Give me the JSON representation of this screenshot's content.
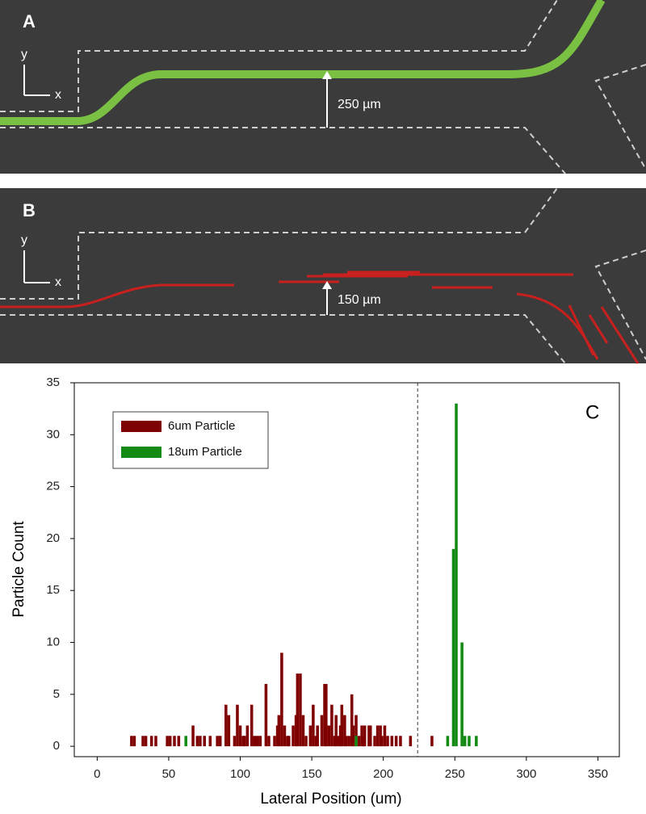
{
  "panels": {
    "a": {
      "label": "A",
      "axis_y": "y",
      "axis_x": "x",
      "scale": "250 µm"
    },
    "b": {
      "label": "B",
      "axis_y": "y",
      "axis_x": "x",
      "scale": "150 µm"
    }
  },
  "chart_data": {
    "type": "bar",
    "panel_label": "C",
    "x_label": "Lateral Position (um)",
    "y_label": "Particle Count",
    "xlim": [
      -16,
      365
    ],
    "ylim": [
      -1,
      35
    ],
    "xticks": [
      0,
      50,
      100,
      150,
      200,
      250,
      300,
      350
    ],
    "yticks": [
      0,
      5,
      10,
      15,
      20,
      25,
      30,
      35
    ],
    "vline": 224,
    "legend": "upper-left",
    "series": [
      {
        "name": "6um Particle",
        "color": "#7f0000",
        "x": [
          24,
          26,
          32,
          34,
          38,
          41,
          49,
          51,
          54,
          57,
          67,
          70,
          72,
          75,
          79,
          84,
          86,
          90,
          92,
          96,
          98,
          100,
          102,
          103,
          105,
          108,
          110,
          112,
          114,
          118,
          120,
          124,
          126,
          127,
          129,
          131,
          133,
          134,
          137,
          139,
          140,
          142,
          144,
          146,
          149,
          151,
          153,
          154,
          157,
          159,
          160,
          162,
          164,
          166,
          167,
          169,
          170,
          171,
          173,
          174,
          176,
          178,
          179,
          181,
          183,
          185,
          186,
          187,
          190,
          191,
          194,
          196,
          198,
          199,
          201,
          203,
          206,
          209,
          212,
          219,
          234
        ],
        "values": [
          1,
          1,
          1,
          1,
          1,
          1,
          1,
          1,
          1,
          1,
          2,
          1,
          1,
          1,
          1,
          1,
          1,
          4,
          3,
          1,
          4,
          2,
          1,
          1,
          2,
          4,
          1,
          1,
          1,
          6,
          1,
          1,
          2,
          3,
          9,
          2,
          1,
          1,
          2,
          3,
          7,
          7,
          3,
          1,
          2,
          4,
          1,
          2,
          3,
          6,
          6,
          2,
          4,
          1,
          3,
          1,
          2,
          4,
          3,
          1,
          1,
          5,
          2,
          3,
          1,
          2,
          1,
          2,
          2,
          2,
          1,
          2,
          2,
          1,
          2,
          1,
          1,
          1,
          1,
          1,
          1
        ]
      },
      {
        "name": "18um Particle",
        "color": "#138a13",
        "x": [
          62,
          181,
          245,
          249,
          251,
          255,
          257,
          260,
          265
        ],
        "values": [
          1,
          1,
          1,
          19,
          33,
          10,
          1,
          1,
          1
        ]
      }
    ]
  }
}
